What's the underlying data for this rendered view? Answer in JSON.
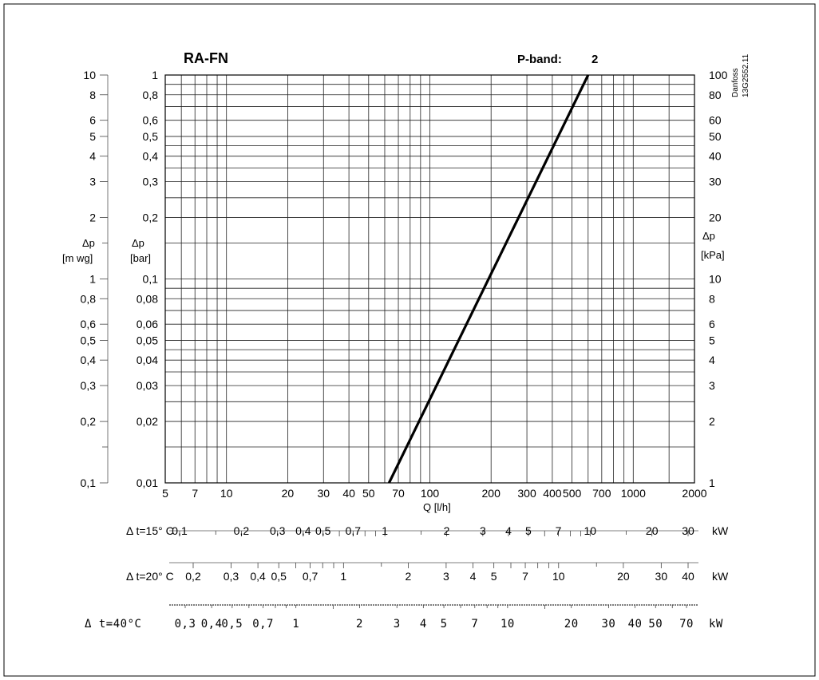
{
  "chart_data": {
    "type": "line",
    "title": "RA-FN",
    "p_band_label": "P-band:",
    "p_band_value": "2",
    "watermark_lines": [
      "Danfoss",
      "13G2552.11"
    ],
    "xlabel": "Q [l/h]",
    "x_scale": "log",
    "xlim": [
      5,
      2000
    ],
    "x_ticks": [
      "5",
      "7",
      "10",
      "20",
      "30",
      "40",
      "50",
      "70",
      "100",
      "200",
      "300",
      "400",
      "500",
      "700",
      "1000",
      "2000"
    ],
    "y_scale": "log",
    "ylim": [
      0.01,
      1
    ],
    "ylabel_bar": [
      "Δp",
      "[bar]"
    ],
    "ylabel_mwg": [
      "Δp",
      "[m wg]"
    ],
    "ylabel_kpa": [
      "Δp",
      "[kPa]"
    ],
    "y_ticks_bar": [
      "1",
      "0,8",
      "0,6",
      "0,5",
      "0,4",
      "0,3",
      "0,2",
      "0,1",
      "0,08",
      "0,06",
      "0,05",
      "0,04",
      "0,03",
      "0,02",
      "0,01"
    ],
    "y_ticks_mwg": [
      "10",
      "8",
      "6",
      "5",
      "4",
      "3",
      "2",
      "1",
      "0,8",
      "0,6",
      "0,5",
      "0,4",
      "0,3",
      "0,2",
      "0,1"
    ],
    "y_ticks_kpa": [
      "100",
      "80",
      "60",
      "50",
      "40",
      "30",
      "20",
      "10",
      "8",
      "6",
      "5",
      "4",
      "3",
      "2",
      "1"
    ],
    "grid": true,
    "series": [
      {
        "x": [
          63,
          600
        ],
        "y": [
          0.01,
          1
        ]
      }
    ],
    "power_scales": [
      {
        "label": "Δ t=15° C",
        "unit": "kW",
        "ticks": [
          "0,1",
          "0,2",
          "0,3",
          "0,4",
          "0,5",
          "0,7",
          "1",
          "2",
          "3",
          "4",
          "5",
          "7",
          "10",
          "20",
          "30"
        ]
      },
      {
        "label": "Δ t=20° C",
        "unit": "kW",
        "ticks": [
          "0,2",
          "0,3",
          "0,4",
          "0,5",
          "0,7",
          "1",
          "2",
          "3",
          "4",
          "5",
          "7",
          "10",
          "20",
          "30",
          "40"
        ]
      },
      {
        "label": "Δ t=40°C",
        "unit": "kW",
        "ticks": [
          "0,3",
          "0,4",
          "0,5",
          "0,7",
          "1",
          "2",
          "3",
          "4",
          "5",
          "7",
          "10",
          "20",
          "30",
          "40",
          "50",
          "70"
        ]
      }
    ]
  }
}
